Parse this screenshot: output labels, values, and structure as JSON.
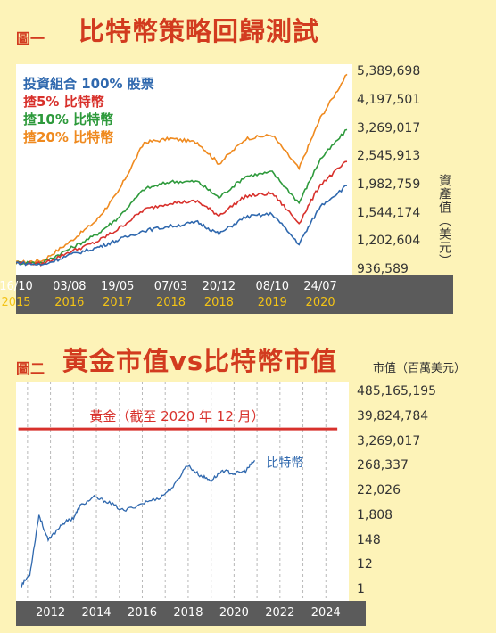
{
  "figure1": {
    "label": "圖一",
    "title": "比特幣策略回歸測試",
    "y_unit": "資產值（美元）",
    "legend": [
      {
        "text": "投資組合 100% 股票",
        "color": "#2f68ae"
      },
      {
        "text": "揸5% 比特幣",
        "color": "#d8312c"
      },
      {
        "text": "揸10% 比特幣",
        "color": "#2e9a3c"
      },
      {
        "text": "揸20% 比特幣",
        "color": "#ef8a1f"
      }
    ],
    "x_ticks_top": [
      "16/10",
      "03/08",
      "19/05",
      "07/03",
      "20/12",
      "08/10",
      "24/07"
    ],
    "x_ticks_bottom": [
      "2015",
      "2016",
      "2017",
      "2018",
      "2018",
      "2019",
      "2020"
    ],
    "y_ticks": [
      "5,389,698",
      "4,197,501",
      "3,269,017",
      "2,545,913",
      "1,982,759",
      "1,544,174",
      "1,202,604",
      "936,589"
    ]
  },
  "figure2": {
    "label": "圖二",
    "title": "黃金市值vs比特幣市值",
    "y_unit": "市值（百萬美元）",
    "gold_label": "黃金（截至 2020 年 12 月）",
    "btc_label": "比特幣",
    "y_ticks": [
      "485,165,195",
      "39,824,784",
      "3,269,017",
      "268,337",
      "22,026",
      "1,808",
      "148",
      "12",
      "1"
    ],
    "x_ticks": [
      "2012",
      "2014",
      "2016",
      "2018",
      "2020",
      "2022",
      "2024"
    ]
  },
  "chart_data": [
    {
      "type": "line",
      "title": "比特幣策略回歸測試",
      "ylabel": "資產值（美元）",
      "y_scale": "log",
      "ylim": [
        900000,
        5800000
      ],
      "x": [
        "2015-10",
        "2016-03",
        "2016-08",
        "2017-01",
        "2017-05",
        "2017-10",
        "2018-03",
        "2018-08",
        "2018-12",
        "2019-05",
        "2019-10",
        "2020-03",
        "2020-07",
        "2020-12"
      ],
      "series": [
        {
          "name": "投資組合 100% 股票",
          "color": "#2f68ae",
          "values": [
            1000000,
            980000,
            1070000,
            1140000,
            1220000,
            1330000,
            1380000,
            1430000,
            1290000,
            1500000,
            1540000,
            1180000,
            1650000,
            1980000
          ]
        },
        {
          "name": "揸5% 比特幣",
          "color": "#d8312c",
          "values": [
            1000000,
            990000,
            1100000,
            1200000,
            1340000,
            1600000,
            1700000,
            1720000,
            1520000,
            1800000,
            1850000,
            1420000,
            2000000,
            2450000
          ]
        },
        {
          "name": "揸10% 比特幣",
          "color": "#2e9a3c",
          "values": [
            1000000,
            1000000,
            1130000,
            1280000,
            1480000,
            1920000,
            2050000,
            2050000,
            1780000,
            2150000,
            2230000,
            1700000,
            2500000,
            3250000
          ]
        },
        {
          "name": "揸20% 比特幣",
          "color": "#ef8a1f",
          "values": [
            1000000,
            1020000,
            1200000,
            1450000,
            1850000,
            2900000,
            3000000,
            2900000,
            2400000,
            3000000,
            3100000,
            2300000,
            3600000,
            5300000
          ]
        }
      ]
    },
    {
      "type": "line",
      "title": "黃金市值vs比特幣市值",
      "ylabel": "市值（百萬美元）",
      "y_scale": "log",
      "ylim": [
        1,
        485165195
      ],
      "series": [
        {
          "name": "黃金（截至 2020 年 12 月）",
          "color": "#d8312c",
          "x": [
            2010.6,
            2024.5
          ],
          "values": [
            12000000,
            12000000
          ]
        },
        {
          "name": "比特幣",
          "color": "#2f68ae",
          "x": [
            2010.7,
            2011.1,
            2011.5,
            2011.9,
            2012.5,
            2013.0,
            2013.3,
            2013.9,
            2014.5,
            2015.2,
            2016.0,
            2016.8,
            2017.4,
            2017.95,
            2018.5,
            2019.0,
            2019.5,
            2020.0,
            2020.5,
            2020.9
          ],
          "values": [
            1.5,
            5,
            2000,
            150,
            800,
            1500,
            5000,
            12000,
            7500,
            3000,
            6500,
            12000,
            40000,
            320000,
            110000,
            65000,
            180000,
            130000,
            170000,
            500000
          ]
        }
      ]
    }
  ]
}
